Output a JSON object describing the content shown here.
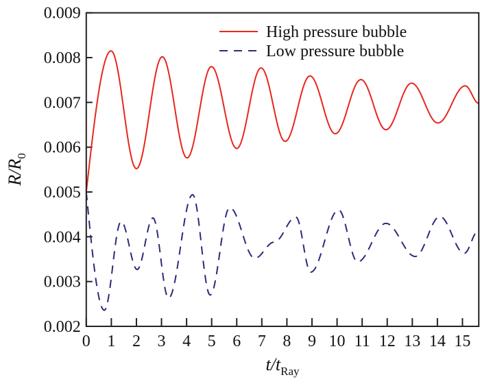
{
  "chart_data": {
    "type": "line",
    "xlabel": {
      "main": "t/t",
      "sub": "Ray"
    },
    "ylabel": {
      "main": "R/R",
      "sub": "0"
    },
    "xlim": [
      0,
      15.65
    ],
    "ylim": [
      0.002,
      0.009
    ],
    "xticks": [
      "0",
      "1",
      "2",
      "3",
      "4",
      "5",
      "6",
      "7",
      "8",
      "9",
      "10",
      "11",
      "12",
      "13",
      "14",
      "15"
    ],
    "yticks": [
      "0.002",
      "0.003",
      "0.004",
      "0.005",
      "0.006",
      "0.007",
      "0.008",
      "0.009"
    ],
    "grid": false,
    "legend_position": "top-right",
    "series": [
      {
        "name": "High pressure bubble",
        "color": "#e8261c",
        "style": "solid",
        "points": [
          [
            0,
            0.005
          ],
          [
            0.99,
            0.00815
          ],
          [
            2.0,
            0.00552
          ],
          [
            3.03,
            0.00802
          ],
          [
            4.02,
            0.00576
          ],
          [
            4.99,
            0.0078
          ],
          [
            6.0,
            0.00597
          ],
          [
            6.97,
            0.00777
          ],
          [
            7.93,
            0.00613
          ],
          [
            8.92,
            0.00759
          ],
          [
            9.93,
            0.0063
          ],
          [
            10.95,
            0.00751
          ],
          [
            11.95,
            0.00639
          ],
          [
            12.97,
            0.00743
          ],
          [
            14.02,
            0.00654
          ],
          [
            15.11,
            0.00737
          ],
          [
            15.65,
            0.00698
          ]
        ]
      },
      {
        "name": "Low pressure bubble",
        "color": "#2b2a7a",
        "style": "dashed",
        "points": [
          [
            0,
            0.005
          ],
          [
            0.72,
            0.00236
          ],
          [
            1.39,
            0.00434
          ],
          [
            2.03,
            0.00327
          ],
          [
            2.66,
            0.00442
          ],
          [
            3.28,
            0.00263
          ],
          [
            4.24,
            0.00494
          ],
          [
            4.94,
            0.0027
          ],
          [
            5.72,
            0.00465
          ],
          [
            6.72,
            0.00352
          ],
          [
            7.49,
            0.00388
          ],
          [
            8.36,
            0.00444
          ],
          [
            8.95,
            0.00321
          ],
          [
            10.06,
            0.0046
          ],
          [
            10.82,
            0.00344
          ],
          [
            11.95,
            0.0043
          ],
          [
            13.12,
            0.00356
          ],
          [
            14.1,
            0.00445
          ],
          [
            15.07,
            0.00363
          ],
          [
            15.63,
            0.00413
          ]
        ]
      }
    ]
  }
}
